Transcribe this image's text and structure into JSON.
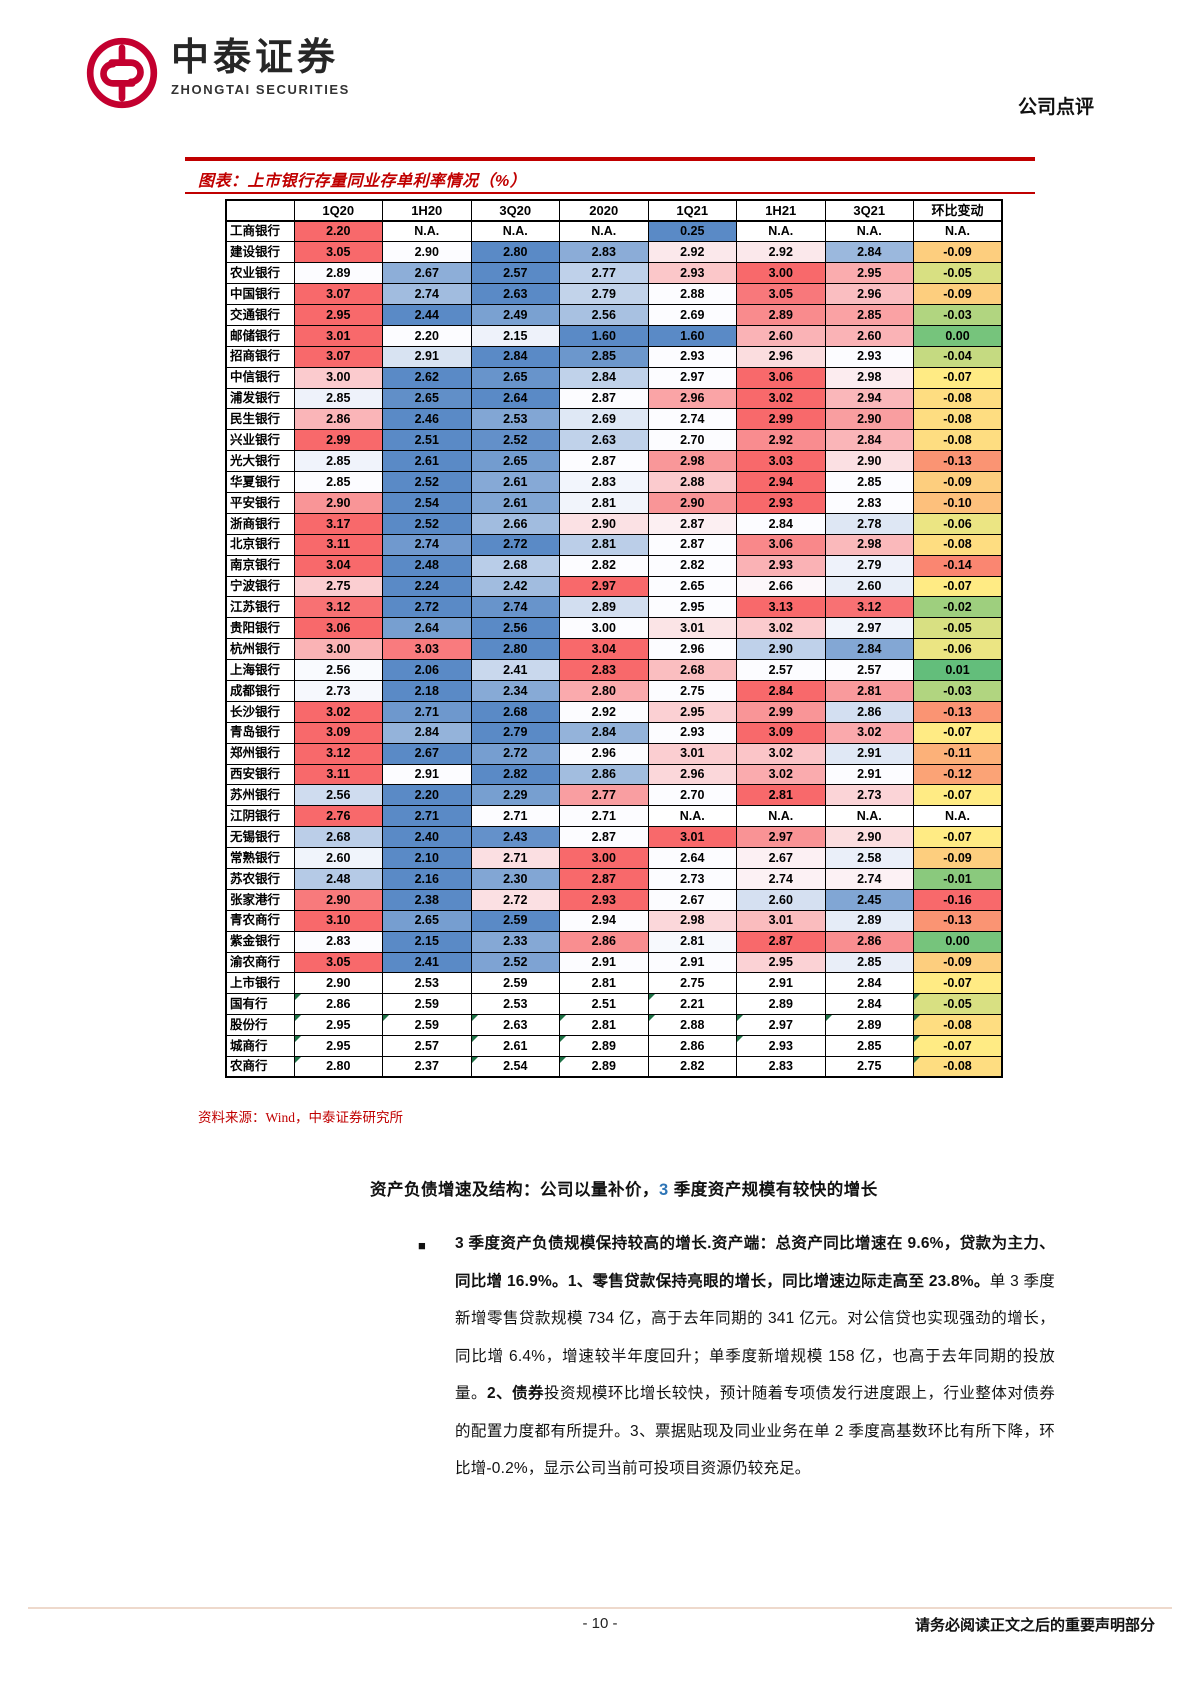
{
  "header": {
    "logo_cn": "中泰证券",
    "logo_en": "ZHONGTAI SECURITIES",
    "doc_type": "公司点评"
  },
  "figure": {
    "title": "图表：上市银行存量同业存单利率情况（%）",
    "source": "资料来源：Wind，中泰证券研究所"
  },
  "chart_data": {
    "type": "table",
    "columns": [
      "",
      "1Q20",
      "1H20",
      "3Q20",
      "2020",
      "1Q21",
      "1H21",
      "3Q21",
      "环比变动"
    ],
    "rows": [
      {
        "name": "工商银行",
        "values": [
          "2.20",
          "N.A.",
          "N.A.",
          "N.A.",
          "0.25",
          "N.A.",
          "N.A."
        ],
        "chg": "N.A."
      },
      {
        "name": "建设银行",
        "values": [
          "3.05",
          "2.90",
          "2.80",
          "2.83",
          "2.92",
          "2.92",
          "2.84"
        ],
        "chg": "-0.09"
      },
      {
        "name": "农业银行",
        "values": [
          "2.89",
          "2.67",
          "2.57",
          "2.77",
          "2.93",
          "3.00",
          "2.95"
        ],
        "chg": "-0.05"
      },
      {
        "name": "中国银行",
        "values": [
          "3.07",
          "2.74",
          "2.63",
          "2.79",
          "2.88",
          "3.05",
          "2.96"
        ],
        "chg": "-0.09"
      },
      {
        "name": "交通银行",
        "values": [
          "2.95",
          "2.44",
          "2.49",
          "2.56",
          "2.69",
          "2.89",
          "2.85"
        ],
        "chg": "-0.03"
      },
      {
        "name": "邮储银行",
        "values": [
          "3.01",
          "2.20",
          "2.15",
          "1.60",
          "1.60",
          "2.60",
          "2.60"
        ],
        "chg": "0.00"
      },
      {
        "name": "招商银行",
        "values": [
          "3.07",
          "2.91",
          "2.84",
          "2.85",
          "2.93",
          "2.96",
          "2.93"
        ],
        "chg": "-0.04"
      },
      {
        "name": "中信银行",
        "values": [
          "3.00",
          "2.62",
          "2.65",
          "2.84",
          "2.97",
          "3.06",
          "2.98"
        ],
        "chg": "-0.07"
      },
      {
        "name": "浦发银行",
        "values": [
          "2.85",
          "2.65",
          "2.64",
          "2.87",
          "2.96",
          "3.02",
          "2.94"
        ],
        "chg": "-0.08"
      },
      {
        "name": "民生银行",
        "values": [
          "2.86",
          "2.46",
          "2.53",
          "2.69",
          "2.74",
          "2.99",
          "2.90"
        ],
        "chg": "-0.08"
      },
      {
        "name": "兴业银行",
        "values": [
          "2.99",
          "2.51",
          "2.52",
          "2.63",
          "2.70",
          "2.92",
          "2.84"
        ],
        "chg": "-0.08"
      },
      {
        "name": "光大银行",
        "values": [
          "2.85",
          "2.61",
          "2.65",
          "2.87",
          "2.98",
          "3.03",
          "2.90"
        ],
        "chg": "-0.13"
      },
      {
        "name": "华夏银行",
        "values": [
          "2.85",
          "2.52",
          "2.61",
          "2.83",
          "2.88",
          "2.94",
          "2.85"
        ],
        "chg": "-0.09"
      },
      {
        "name": "平安银行",
        "values": [
          "2.90",
          "2.54",
          "2.61",
          "2.81",
          "2.90",
          "2.93",
          "2.83"
        ],
        "chg": "-0.10"
      },
      {
        "name": "浙商银行",
        "values": [
          "3.17",
          "2.52",
          "2.66",
          "2.90",
          "2.87",
          "2.84",
          "2.78"
        ],
        "chg": "-0.06"
      },
      {
        "name": "北京银行",
        "values": [
          "3.11",
          "2.74",
          "2.72",
          "2.81",
          "2.87",
          "3.06",
          "2.98"
        ],
        "chg": "-0.08"
      },
      {
        "name": "南京银行",
        "values": [
          "3.04",
          "2.48",
          "2.68",
          "2.82",
          "2.82",
          "2.93",
          "2.79"
        ],
        "chg": "-0.14"
      },
      {
        "name": "宁波银行",
        "values": [
          "2.75",
          "2.24",
          "2.42",
          "2.97",
          "2.65",
          "2.66",
          "2.60"
        ],
        "chg": "-0.07"
      },
      {
        "name": "江苏银行",
        "values": [
          "3.12",
          "2.72",
          "2.74",
          "2.89",
          "2.95",
          "3.13",
          "3.12"
        ],
        "chg": "-0.02"
      },
      {
        "name": "贵阳银行",
        "values": [
          "3.06",
          "2.64",
          "2.56",
          "3.00",
          "3.01",
          "3.02",
          "2.97"
        ],
        "chg": "-0.05"
      },
      {
        "name": "杭州银行",
        "values": [
          "3.00",
          "3.03",
          "2.80",
          "3.04",
          "2.96",
          "2.90",
          "2.84"
        ],
        "chg": "-0.06"
      },
      {
        "name": "上海银行",
        "values": [
          "2.56",
          "2.06",
          "2.41",
          "2.83",
          "2.68",
          "2.57",
          "2.57"
        ],
        "chg": "0.01"
      },
      {
        "name": "成都银行",
        "values": [
          "2.73",
          "2.18",
          "2.34",
          "2.80",
          "2.75",
          "2.84",
          "2.81"
        ],
        "chg": "-0.03"
      },
      {
        "name": "长沙银行",
        "values": [
          "3.02",
          "2.71",
          "2.68",
          "2.92",
          "2.95",
          "2.99",
          "2.86"
        ],
        "chg": "-0.13"
      },
      {
        "name": "青岛银行",
        "values": [
          "3.09",
          "2.84",
          "2.79",
          "2.84",
          "2.93",
          "3.09",
          "3.02"
        ],
        "chg": "-0.07"
      },
      {
        "name": "郑州银行",
        "values": [
          "3.12",
          "2.67",
          "2.72",
          "2.96",
          "3.01",
          "3.02",
          "2.91"
        ],
        "chg": "-0.11"
      },
      {
        "name": "西安银行",
        "values": [
          "3.11",
          "2.91",
          "2.82",
          "2.86",
          "2.96",
          "3.02",
          "2.91"
        ],
        "chg": "-0.12"
      },
      {
        "name": "苏州银行",
        "values": [
          "2.56",
          "2.20",
          "2.29",
          "2.77",
          "2.70",
          "2.81",
          "2.73"
        ],
        "chg": "-0.07"
      },
      {
        "name": "江阴银行",
        "values": [
          "2.76",
          "2.71",
          "2.71",
          "2.71",
          "N.A.",
          "N.A.",
          "N.A."
        ],
        "chg": "N.A."
      },
      {
        "name": "无锡银行",
        "values": [
          "2.68",
          "2.40",
          "2.43",
          "2.87",
          "3.01",
          "2.97",
          "2.90"
        ],
        "chg": "-0.07"
      },
      {
        "name": "常熟银行",
        "values": [
          "2.60",
          "2.10",
          "2.71",
          "3.00",
          "2.64",
          "2.67",
          "2.58"
        ],
        "chg": "-0.09"
      },
      {
        "name": "苏农银行",
        "values": [
          "2.48",
          "2.16",
          "2.30",
          "2.87",
          "2.73",
          "2.74",
          "2.74"
        ],
        "chg": "-0.01"
      },
      {
        "name": "张家港行",
        "values": [
          "2.90",
          "2.38",
          "2.72",
          "2.93",
          "2.67",
          "2.60",
          "2.45"
        ],
        "chg": "-0.16"
      },
      {
        "name": "青农商行",
        "values": [
          "3.10",
          "2.65",
          "2.59",
          "2.94",
          "2.98",
          "3.01",
          "2.89"
        ],
        "chg": "-0.13"
      },
      {
        "name": "紫金银行",
        "values": [
          "2.83",
          "2.15",
          "2.33",
          "2.86",
          "2.81",
          "2.87",
          "2.86"
        ],
        "chg": "0.00"
      },
      {
        "name": "渝农商行",
        "values": [
          "3.05",
          "2.41",
          "2.52",
          "2.91",
          "2.91",
          "2.95",
          "2.85"
        ],
        "chg": "-0.09"
      },
      {
        "name": "上市银行",
        "values": [
          "2.90",
          "2.53",
          "2.59",
          "2.81",
          "2.75",
          "2.91",
          "2.84"
        ],
        "chg": "-0.07",
        "summary": true
      },
      {
        "name": "国有行",
        "values": [
          "2.86",
          "2.59",
          "2.53",
          "2.51",
          "2.21",
          "2.89",
          "2.84"
        ],
        "chg": "-0.05",
        "summary": true,
        "flags": [
          0,
          4,
          7
        ]
      },
      {
        "name": "股份行",
        "values": [
          "2.95",
          "2.59",
          "2.63",
          "2.81",
          "2.88",
          "2.97",
          "2.89"
        ],
        "chg": "-0.08",
        "summary": true,
        "flags": [
          0,
          1,
          2,
          3,
          4,
          5,
          6,
          7
        ]
      },
      {
        "name": "城商行",
        "values": [
          "2.95",
          "2.57",
          "2.61",
          "2.89",
          "2.86",
          "2.93",
          "2.85"
        ],
        "chg": "-0.07",
        "summary": true,
        "flags": [
          0,
          2,
          3,
          5,
          7
        ]
      },
      {
        "name": "农商行",
        "values": [
          "2.80",
          "2.37",
          "2.54",
          "2.89",
          "2.82",
          "2.83",
          "2.75"
        ],
        "chg": "-0.08",
        "summary": true,
        "flags": [
          0,
          2,
          3,
          7
        ]
      }
    ],
    "overrides": [
      {
        "row": 28,
        "col": 1,
        "color": "#5A8AC6"
      }
    ],
    "layout": {
      "heatmap": "per-row red-white-blue on quarterly columns; column-wide red-yellow-green on 环比变动"
    }
  },
  "section": {
    "heading_pre": "资产负债增速及结构：公司以量补价，",
    "heading_num": "3",
    "heading_post": " 季度资产规模有较快的增长",
    "bullet": "■",
    "bullet_runs": [
      {
        "text": "3 季度资产负债规模保持较高的增长.资产端：总资产同比增速在 9.6%，贷款为主力、同比增 16.9%。1、零售贷款保持亮眼的增长，同比增速边际走高至 23.8%。",
        "bold": true
      },
      {
        "text": "单 3 季度新增零售贷款规模 734 亿，高于去年同期的 341 亿元。对公信贷也实现强劲的增长，同比增 6.4%，增速较半年度回升；单季度新增规模 158 亿，也高于去年同期的投放量。",
        "bold": false
      },
      {
        "text": "2、债券",
        "bold": true
      },
      {
        "text": "投资规模环比增长较快，预计随着专项债发行进度跟上，行业整体对债券的配置力度都有所提升。3、票据贴现及同业业务在单 2 季度高基数环比有所下降，环比增-0.2%，显示公司当前可投项目资源仍较充足。",
        "bold": false
      }
    ]
  },
  "footer": {
    "page": "- 10 -",
    "disclaimer": "请务必阅读正文之后的重要声明部分"
  },
  "colors": {
    "accent_red": "#C00000",
    "logo_red": "#C3002F",
    "heading_number_blue": "#2E75B6",
    "footer_rule": "#EED9CC",
    "heatmap_low": "#5A8AC6",
    "heatmap_mid": "#FCFCFF",
    "heatmap_high": "#F8696B",
    "chg_low": "#F8696B",
    "chg_mid": "#FFEB84",
    "chg_high": "#63BE7B",
    "triangle_green": "#1E7145"
  }
}
